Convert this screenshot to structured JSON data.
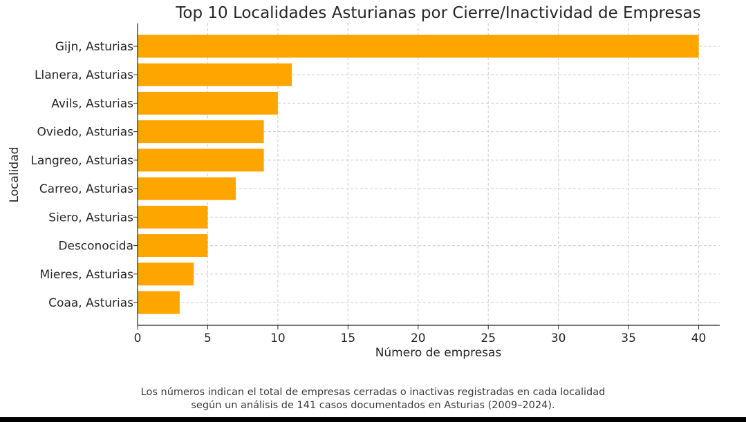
{
  "chart_data": {
    "type": "bar",
    "orientation": "horizontal",
    "title": "Top 10 Localidades Asturianas por Cierre/Inactividad de Empresas",
    "xlabel": "Número de empresas",
    "ylabel": "Localidad",
    "categories": [
      "Gijn, Asturias",
      "Llanera, Asturias",
      "Avils, Asturias",
      "Oviedo, Asturias",
      "Langreo, Asturias",
      "Carreo, Asturias",
      "Siero, Asturias",
      "Desconocida",
      "Mieres, Asturias",
      "Coaa, Asturias"
    ],
    "values": [
      40,
      11,
      10,
      9,
      9,
      7,
      5,
      5,
      4,
      3
    ],
    "xlim": [
      0,
      41.5
    ],
    "xticks": [
      "0",
      "5",
      "10",
      "15",
      "20",
      "25",
      "30",
      "35",
      "40"
    ],
    "grid": true,
    "bar_color": "#FFA500"
  },
  "caption": {
    "line1": "Los números indican el total de empresas cerradas o inactivas registradas en cada localidad",
    "line2": "según un análisis de 141 casos documentados en Asturias (2009–2024)."
  }
}
